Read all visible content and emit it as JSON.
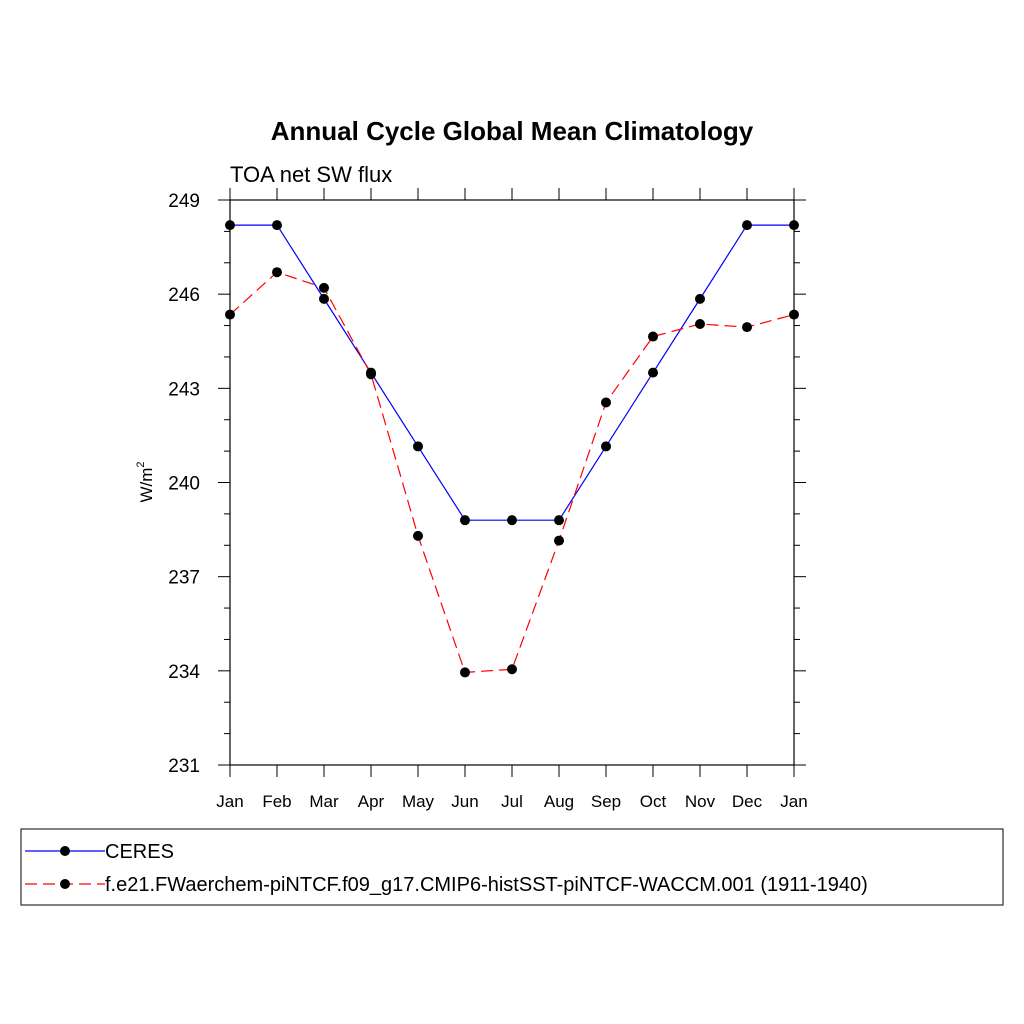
{
  "chart_data": {
    "type": "line",
    "title": "Annual Cycle Global Mean Climatology",
    "subtitle": "TOA net SW flux",
    "ylabel": "W/m",
    "ylabel_sup": "2",
    "xlabel": "",
    "categories": [
      "Jan",
      "Feb",
      "Mar",
      "Apr",
      "May",
      "Jun",
      "Jul",
      "Aug",
      "Sep",
      "Oct",
      "Nov",
      "Dec",
      "Jan"
    ],
    "ylim": [
      231,
      249
    ],
    "yticks": [
      231,
      234,
      237,
      240,
      243,
      246,
      249
    ],
    "series": [
      {
        "name": "CERES",
        "color": "#0000ff",
        "dash": "solid",
        "values": [
          248.2,
          248.2,
          245.85,
          243.5,
          241.15,
          238.8,
          238.8,
          238.8,
          241.15,
          243.5,
          245.85,
          248.2,
          248.2
        ]
      },
      {
        "name": "f.e21.FWaerchem-piNTCF.f09_g17.CMIP6-histSST-piNTCF-WACCM.001 (1911-1940)",
        "color": "#ff0000",
        "dash": "dashed",
        "values": [
          245.35,
          246.7,
          246.2,
          243.45,
          238.3,
          233.95,
          234.05,
          238.15,
          242.55,
          244.65,
          245.05,
          244.95,
          245.35
        ]
      }
    ],
    "legend": "bottom"
  }
}
